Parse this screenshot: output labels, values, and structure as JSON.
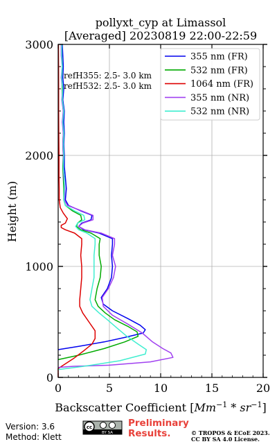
{
  "chart_data": {
    "type": "line",
    "title": "pollyxt_cyp at Limassol",
    "subtitle": "[Averaged] 20230819 22:00-22:59",
    "xlabel_prefix": "Backscatter Coefficient [",
    "xlabel_unit_a": "Mm",
    "xlabel_exp_a": "−1",
    "xlabel_mid": " * ",
    "xlabel_unit_b": "sr",
    "xlabel_exp_b": "−1",
    "xlabel_suffix": "]",
    "ylabel": "Height (m)",
    "xlim": [
      0,
      20
    ],
    "ylim": [
      0,
      3000
    ],
    "xticks": [
      0,
      5,
      10,
      15,
      20
    ],
    "xtick_labels": [
      "0",
      "5",
      "10",
      "15",
      "20"
    ],
    "yticks": [
      0,
      1000,
      2000,
      3000
    ],
    "ytick_labels": [
      "0",
      "1000",
      "2000",
      "3000"
    ],
    "grid": true,
    "legend_position": "top-right",
    "annotations": [
      "refH355:  2.5- 3.0 km",
      "refH532:  2.5- 3.0 km"
    ],
    "series": [
      {
        "name": "355 nm (FR)",
        "color": "#0000ee",
        "points": [
          [
            0.0,
            250
          ],
          [
            2.0,
            280
          ],
          [
            4.5,
            320
          ],
          [
            6.5,
            360
          ],
          [
            8.3,
            400
          ],
          [
            8.5,
            430
          ],
          [
            8.0,
            470
          ],
          [
            6.8,
            530
          ],
          [
            5.3,
            600
          ],
          [
            4.4,
            660
          ],
          [
            4.2,
            720
          ],
          [
            4.8,
            800
          ],
          [
            5.2,
            900
          ],
          [
            5.3,
            1000
          ],
          [
            5.2,
            1100
          ],
          [
            5.3,
            1200
          ],
          [
            5.3,
            1250
          ],
          [
            4.0,
            1300
          ],
          [
            2.5,
            1330
          ],
          [
            2.0,
            1360
          ],
          [
            2.3,
            1390
          ],
          [
            3.2,
            1420
          ],
          [
            3.3,
            1460
          ],
          [
            2.2,
            1500
          ],
          [
            1.0,
            1550
          ],
          [
            0.7,
            1600
          ],
          [
            0.8,
            1700
          ],
          [
            0.7,
            1800
          ],
          [
            0.6,
            1900
          ],
          [
            0.6,
            2000
          ],
          [
            0.55,
            2100
          ],
          [
            0.6,
            2200
          ],
          [
            0.55,
            2300
          ],
          [
            0.6,
            2400
          ],
          [
            0.45,
            2500
          ],
          [
            0.55,
            2600
          ],
          [
            0.45,
            2700
          ],
          [
            0.5,
            2800
          ],
          [
            0.45,
            2900
          ],
          [
            0.4,
            3000
          ]
        ]
      },
      {
        "name": "532 nm (FR)",
        "color": "#00aa00",
        "points": [
          [
            0.0,
            160
          ],
          [
            2.0,
            200
          ],
          [
            4.5,
            260
          ],
          [
            6.5,
            320
          ],
          [
            7.8,
            370
          ],
          [
            7.7,
            410
          ],
          [
            6.8,
            460
          ],
          [
            5.5,
            520
          ],
          [
            4.6,
            580
          ],
          [
            3.9,
            640
          ],
          [
            3.6,
            700
          ],
          [
            3.8,
            800
          ],
          [
            4.1,
            900
          ],
          [
            4.2,
            1000
          ],
          [
            4.0,
            1100
          ],
          [
            4.0,
            1200
          ],
          [
            4.1,
            1250
          ],
          [
            3.2,
            1300
          ],
          [
            2.2,
            1330
          ],
          [
            1.8,
            1360
          ],
          [
            1.9,
            1390
          ],
          [
            2.3,
            1420
          ],
          [
            2.2,
            1460
          ],
          [
            1.4,
            1500
          ],
          [
            0.7,
            1550
          ],
          [
            0.55,
            1600
          ],
          [
            0.55,
            1700
          ],
          [
            0.5,
            1800
          ],
          [
            0.45,
            1900
          ],
          [
            0.5,
            2000
          ],
          [
            0.45,
            2100
          ],
          [
            0.5,
            2200
          ],
          [
            0.45,
            2300
          ],
          [
            0.5,
            2400
          ],
          [
            0.4,
            2500
          ],
          [
            0.4,
            2600
          ],
          [
            0.35,
            2700
          ],
          [
            0.4,
            2800
          ],
          [
            0.35,
            2900
          ],
          [
            0.35,
            3000
          ]
        ]
      },
      {
        "name": "1064 nm (FR)",
        "color": "#dd0000",
        "points": [
          [
            0.0,
            0
          ],
          [
            0.0,
            80
          ],
          [
            0.5,
            110
          ],
          [
            1.5,
            170
          ],
          [
            2.5,
            240
          ],
          [
            3.3,
            300
          ],
          [
            3.6,
            350
          ],
          [
            3.6,
            420
          ],
          [
            3.0,
            500
          ],
          [
            2.4,
            580
          ],
          [
            2.1,
            640
          ],
          [
            2.1,
            700
          ],
          [
            2.2,
            800
          ],
          [
            2.3,
            900
          ],
          [
            2.3,
            1000
          ],
          [
            2.2,
            1100
          ],
          [
            2.3,
            1200
          ],
          [
            2.3,
            1250
          ],
          [
            1.6,
            1300
          ],
          [
            0.7,
            1330
          ],
          [
            0.3,
            1350
          ],
          [
            0.3,
            1370
          ],
          [
            0.7,
            1390
          ],
          [
            0.9,
            1430
          ],
          [
            0.5,
            1480
          ],
          [
            0.2,
            1530
          ],
          [
            0.1,
            1600
          ],
          [
            0.1,
            1700
          ],
          [
            0.08,
            1800
          ],
          [
            0.08,
            2000
          ],
          [
            0.06,
            2200
          ],
          [
            0.05,
            2400
          ],
          [
            0.05,
            2600
          ],
          [
            0.04,
            2800
          ],
          [
            0.03,
            3000
          ]
        ]
      },
      {
        "name": "355 nm (NR)",
        "color": "#a040f0",
        "points": [
          [
            0.0,
            90
          ],
          [
            1.5,
            100
          ],
          [
            5.0,
            110
          ],
          [
            9.0,
            140
          ],
          [
            11.2,
            180
          ],
          [
            11.0,
            220
          ],
          [
            10.2,
            260
          ],
          [
            9.2,
            320
          ],
          [
            8.2,
            400
          ],
          [
            6.8,
            480
          ],
          [
            5.3,
            560
          ],
          [
            4.4,
            640
          ],
          [
            4.3,
            720
          ],
          [
            4.9,
            800
          ],
          [
            5.4,
            900
          ],
          [
            5.6,
            1000
          ],
          [
            5.3,
            1100
          ],
          [
            5.5,
            1200
          ],
          [
            5.5,
            1250
          ],
          [
            4.2,
            1300
          ],
          [
            2.6,
            1330
          ],
          [
            2.0,
            1360
          ],
          [
            2.4,
            1390
          ],
          [
            3.4,
            1420
          ],
          [
            3.4,
            1460
          ],
          [
            2.3,
            1500
          ],
          [
            0.9,
            1550
          ],
          [
            0.6,
            1600
          ],
          [
            0.65,
            1700
          ],
          [
            0.55,
            1800
          ],
          [
            0.5,
            1900
          ],
          [
            0.5,
            2000
          ],
          [
            0.45,
            2100
          ],
          [
            0.5,
            2200
          ],
          [
            0.4,
            2300
          ],
          [
            0.5,
            2400
          ],
          [
            0.35,
            2500
          ],
          [
            0.45,
            2600
          ],
          [
            0.3,
            2700
          ],
          [
            0.4,
            2800
          ],
          [
            0.3,
            2900
          ],
          [
            0.3,
            3000
          ]
        ]
      },
      {
        "name": "532 nm (NR)",
        "color": "#40eed0",
        "points": [
          [
            0.0,
            70
          ],
          [
            2.5,
            100
          ],
          [
            6.0,
            150
          ],
          [
            8.5,
            210
          ],
          [
            8.6,
            250
          ],
          [
            7.8,
            300
          ],
          [
            6.7,
            370
          ],
          [
            5.8,
            440
          ],
          [
            4.8,
            520
          ],
          [
            4.0,
            580
          ],
          [
            3.3,
            640
          ],
          [
            3.1,
            700
          ],
          [
            3.3,
            800
          ],
          [
            3.5,
            900
          ],
          [
            3.5,
            1000
          ],
          [
            3.5,
            1100
          ],
          [
            3.6,
            1200
          ],
          [
            3.6,
            1250
          ],
          [
            2.8,
            1300
          ],
          [
            2.0,
            1330
          ],
          [
            1.7,
            1360
          ],
          [
            1.9,
            1390
          ],
          [
            2.6,
            1420
          ],
          [
            2.5,
            1460
          ],
          [
            1.6,
            1500
          ],
          [
            0.7,
            1550
          ],
          [
            0.55,
            1600
          ],
          [
            0.6,
            1700
          ],
          [
            0.6,
            1800
          ],
          [
            0.5,
            1900
          ],
          [
            0.55,
            2000
          ],
          [
            0.5,
            2100
          ],
          [
            0.55,
            2200
          ],
          [
            0.45,
            2300
          ],
          [
            0.55,
            2400
          ],
          [
            0.4,
            2500
          ],
          [
            0.45,
            2600
          ],
          [
            0.35,
            2700
          ],
          [
            0.4,
            2800
          ],
          [
            0.35,
            2900
          ],
          [
            0.35,
            3000
          ]
        ]
      }
    ]
  },
  "footer": {
    "version": "Version: 3.6",
    "method": "Method: Klett",
    "license_badge_text": "BY SA",
    "prelim_line1": "Preliminary",
    "prelim_line2": "Results.",
    "copyright_line1": "© TROPOS & ECoE 2023.",
    "copyright_line2": "CC BY SA 4.0 License."
  }
}
